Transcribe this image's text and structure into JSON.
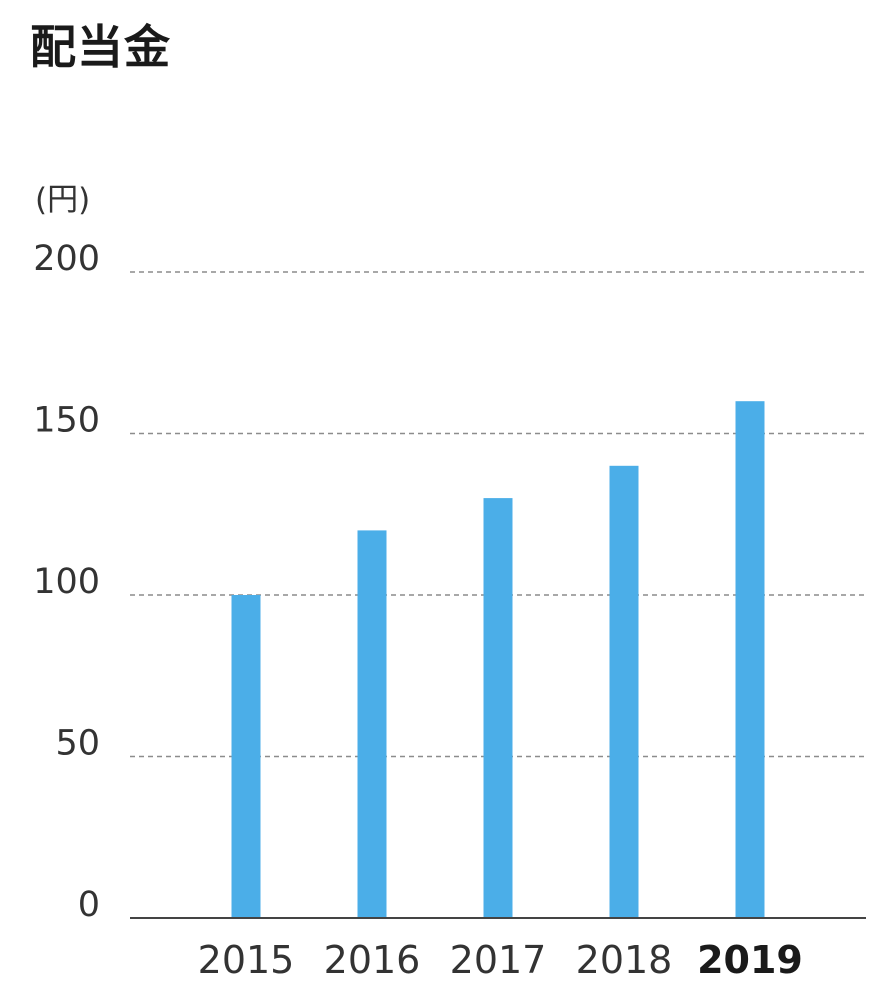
{
  "title": "配当金",
  "chart_data": {
    "type": "bar",
    "unit_label": "(円)",
    "categories": [
      "2015",
      "2016",
      "2017",
      "2018",
      "2019"
    ],
    "highlighted_category": "2019",
    "values": [
      100,
      120,
      130,
      140,
      160
    ],
    "ylim": [
      0,
      200
    ],
    "yticks": [
      0,
      50,
      100,
      150,
      200
    ],
    "grid": true,
    "bar_color": "#4baee8",
    "grid_color": "#8c8c8c",
    "axis_color": "#444444",
    "xlabel": "",
    "ylabel": ""
  }
}
